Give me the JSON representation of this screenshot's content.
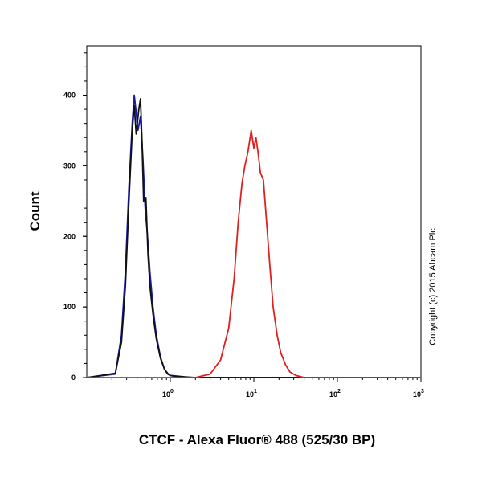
{
  "chart_data": {
    "type": "line",
    "title": "",
    "xlabel": "CTCF - Alexa Fluor® 488 (525/30 BP)",
    "ylabel": "Count",
    "x_scale": "log",
    "xlim": [
      0.1,
      1000
    ],
    "ylim": [
      0,
      470
    ],
    "x_ticks": [
      {
        "base": "10",
        "exp": "0",
        "value": 1
      },
      {
        "base": "10",
        "exp": "1",
        "value": 10
      },
      {
        "base": "10",
        "exp": "2",
        "value": 100
      },
      {
        "base": "10",
        "exp": "3",
        "value": 1000
      }
    ],
    "y_ticks": [
      {
        "label": "0",
        "value": 0
      },
      {
        "label": "100",
        "value": 100
      },
      {
        "label": "200",
        "value": 200
      },
      {
        "label": "300",
        "value": 300
      },
      {
        "label": "400",
        "value": 400
      }
    ],
    "grid": false,
    "legend": "none",
    "series": [
      {
        "color": "#1a1aa8",
        "x": [
          0.1,
          0.22,
          0.26,
          0.29,
          0.32,
          0.35,
          0.37,
          0.39,
          0.41,
          0.44,
          0.47,
          0.5,
          0.53,
          0.57,
          0.62,
          0.68,
          0.76,
          0.85,
          0.93,
          1.0,
          1.1,
          1.3,
          1.6,
          2.0,
          1000
        ],
        "y": [
          0,
          5,
          60,
          150,
          270,
          360,
          400,
          375,
          350,
          370,
          310,
          240,
          205,
          150,
          100,
          60,
          30,
          12,
          5,
          3,
          2,
          1,
          0,
          0,
          0
        ]
      },
      {
        "color": "#111111",
        "x": [
          0.1,
          0.22,
          0.26,
          0.29,
          0.32,
          0.35,
          0.37,
          0.39,
          0.42,
          0.44,
          0.46,
          0.48,
          0.51,
          0.54,
          0.57,
          0.62,
          0.68,
          0.76,
          0.85,
          0.93,
          1.0,
          1.2,
          1.5,
          2.0,
          1000
        ],
        "y": [
          0,
          6,
          50,
          130,
          250,
          350,
          385,
          345,
          380,
          395,
          330,
          250,
          255,
          175,
          130,
          90,
          55,
          28,
          12,
          6,
          3,
          2,
          1,
          0,
          0
        ]
      },
      {
        "color": "#e02020",
        "x": [
          0.1,
          2.0,
          3.0,
          4.0,
          5.0,
          5.8,
          6.5,
          7.2,
          7.8,
          8.5,
          9.3,
          10.0,
          10.6,
          11.2,
          12.0,
          13.0,
          14.0,
          15.5,
          17.0,
          19.0,
          21.0,
          24.0,
          27.0,
          32.0,
          40.0,
          1000
        ],
        "y": [
          0,
          0,
          5,
          25,
          70,
          140,
          220,
          275,
          300,
          320,
          350,
          325,
          340,
          320,
          290,
          280,
          230,
          160,
          100,
          60,
          35,
          18,
          8,
          3,
          0,
          0
        ]
      }
    ],
    "annotations": [
      "Copyright (c) 2015 Abcam Plc"
    ]
  }
}
